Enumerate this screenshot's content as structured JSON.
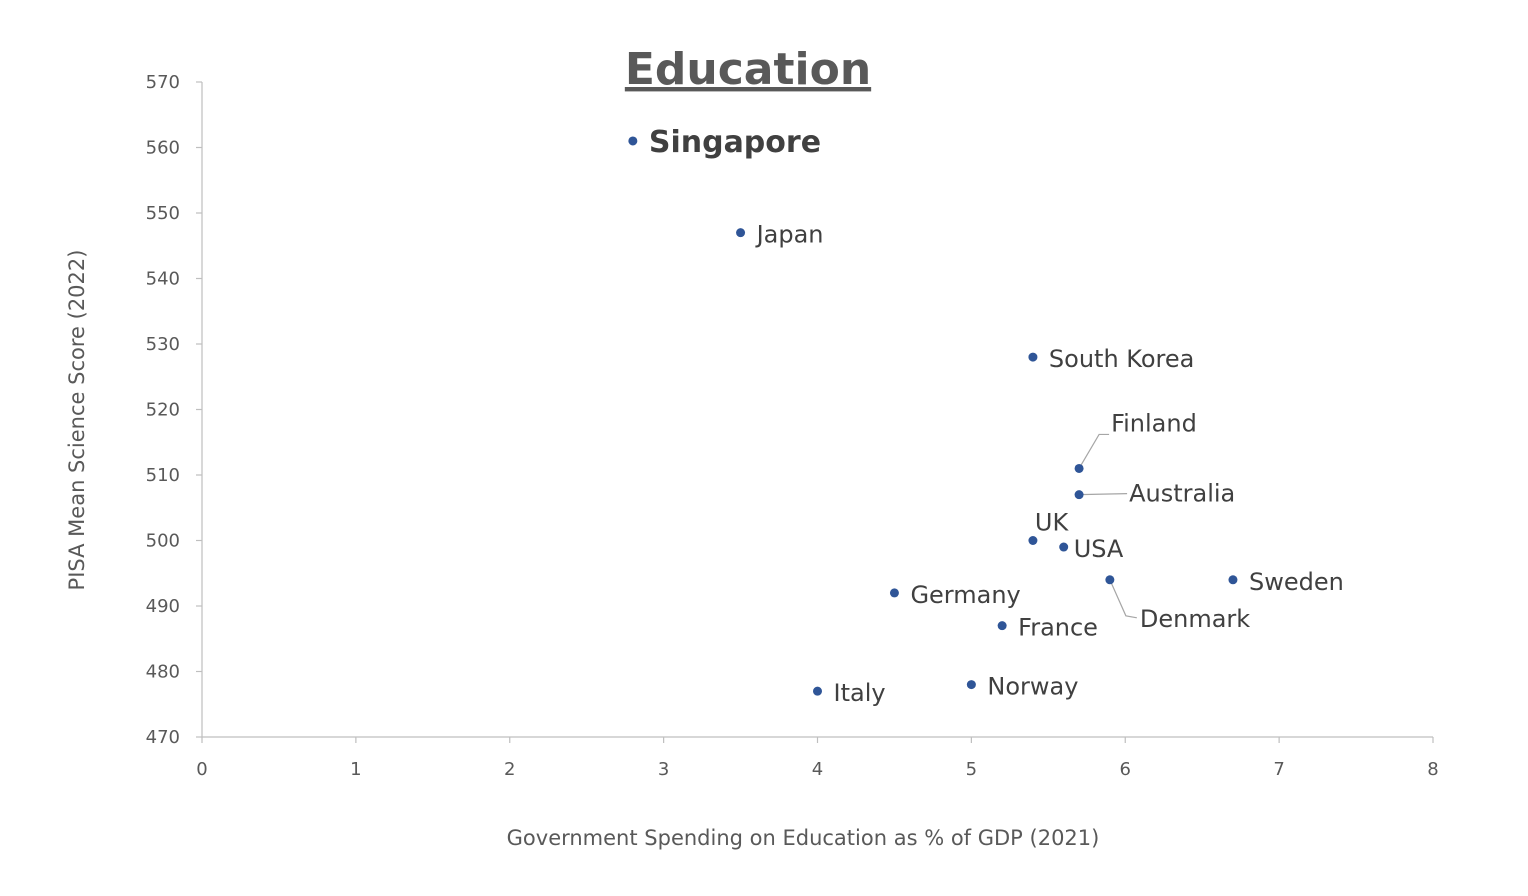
{
  "chart_data": {
    "type": "scatter",
    "title": "Education",
    "xlabel": "Government Spending on Education as % of GDP (2021)",
    "ylabel": "PISA Mean Science Score (2022)",
    "xlim": [
      0,
      8
    ],
    "ylim": [
      470,
      570
    ],
    "xticks": [
      0,
      1,
      2,
      3,
      4,
      5,
      6,
      7,
      8
    ],
    "yticks": [
      470,
      480,
      490,
      500,
      510,
      520,
      530,
      540,
      550,
      560,
      570
    ],
    "grid": false,
    "marker_color": "#2f5597",
    "label_color": "#404040",
    "highlight_color": "#843c2c",
    "points": [
      {
        "label": "Singapore",
        "x": 2.8,
        "y": 561,
        "highlight": true
      },
      {
        "label": "Japan",
        "x": 3.5,
        "y": 547
      },
      {
        "label": "South Korea",
        "x": 5.4,
        "y": 528
      },
      {
        "label": "Finland",
        "x": 5.7,
        "y": 511
      },
      {
        "label": "Australia",
        "x": 5.7,
        "y": 507
      },
      {
        "label": "UK",
        "x": 5.4,
        "y": 500
      },
      {
        "label": "USA",
        "x": 5.6,
        "y": 499
      },
      {
        "label": "Sweden",
        "x": 6.7,
        "y": 494
      },
      {
        "label": "Denmark",
        "x": 5.9,
        "y": 494
      },
      {
        "label": "Germany",
        "x": 4.5,
        "y": 492
      },
      {
        "label": "France",
        "x": 5.2,
        "y": 487
      },
      {
        "label": "Norway",
        "x": 5.0,
        "y": 478
      },
      {
        "label": "Italy",
        "x": 4.0,
        "y": 477
      }
    ]
  }
}
